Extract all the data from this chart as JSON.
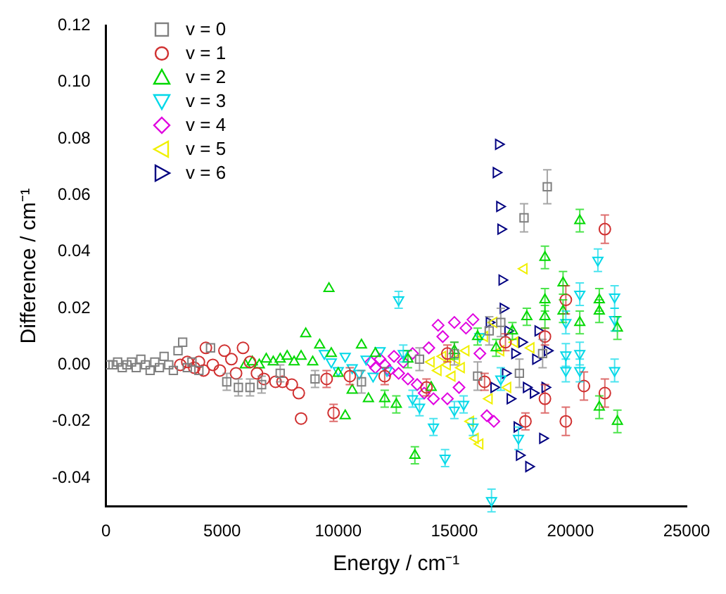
{
  "chart_data": {
    "type": "scatter",
    "xlabel": "Energy / cm⁻¹",
    "ylabel": "Difference / cm⁻¹",
    "xlim": [
      0,
      25000
    ],
    "xticks": [
      0,
      5000,
      10000,
      15000,
      20000,
      25000
    ],
    "ylim": [
      -0.05,
      0.12
    ],
    "yticks": [
      {
        "value": -0.04,
        "label": "-0.04"
      },
      {
        "value": -0.02,
        "label": "-0.02"
      },
      {
        "value": 0,
        "label": "0.00"
      },
      {
        "value": 0.02,
        "label": "0.02"
      },
      {
        "value": 0.04,
        "label": "0.04"
      },
      {
        "value": 0.06,
        "label": "0.06"
      },
      {
        "value": 0.08,
        "label": "0.08"
      },
      {
        "value": 0.1,
        "label": "0.10"
      },
      {
        "value": 0.12,
        "label": "0.12"
      }
    ],
    "grid": false,
    "legend": "top left",
    "series": [
      {
        "name": "v = 0",
        "color": "#808080",
        "marker": "square",
        "x": [
          100,
          300,
          500,
          700,
          900,
          1100,
          1300,
          1500,
          1700,
          1900,
          2100,
          2300,
          2500,
          2700,
          2900,
          3100,
          3300,
          3500,
          3700,
          4000,
          4500,
          5200,
          5700,
          6200,
          6700,
          7500,
          9000,
          11000,
          13500,
          15000,
          16000,
          16500,
          17000,
          17800,
          18000,
          18800,
          19000
        ],
        "values": [
          0,
          0,
          0.001,
          -0.001,
          0,
          0.001,
          -0.001,
          0.002,
          0,
          -0.002,
          0.001,
          -0.001,
          0.003,
          0,
          -0.002,
          0.005,
          0.008,
          -0.001,
          0.001,
          -0.002,
          0.006,
          -0.006,
          -0.008,
          -0.008,
          -0.007,
          -0.003,
          -0.005,
          -0.006,
          0.002,
          0.004,
          -0.004,
          0.012,
          0.015,
          -0.003,
          0.052,
          0.004,
          0.063
        ],
        "errors": [
          null,
          null,
          null,
          null,
          null,
          null,
          null,
          null,
          null,
          null,
          null,
          null,
          null,
          null,
          null,
          null,
          null,
          null,
          null,
          null,
          null,
          0.003,
          0.003,
          0.003,
          0.003,
          0.003,
          0.003,
          0.004,
          0.004,
          0.004,
          0.005,
          0.005,
          0.005,
          0.005,
          0.005,
          0.005,
          0.006
        ]
      },
      {
        "name": "v = 1",
        "color": "#d03030",
        "marker": "circle",
        "x": [
          3200,
          3500,
          3800,
          4000,
          4200,
          4300,
          4600,
          4900,
          5100,
          5400,
          5600,
          5900,
          6200,
          6500,
          6800,
          7300,
          7600,
          8000,
          8300,
          8400,
          9500,
          9800,
          10500,
          12000,
          13800,
          14700,
          16300,
          17200,
          18060,
          18900,
          18900,
          19800,
          19800,
          20580,
          21480,
          21480
        ],
        "values": [
          0,
          0.001,
          -0.001,
          0.001,
          -0.002,
          0.006,
          0,
          -0.002,
          0.005,
          0.002,
          -0.003,
          0.006,
          0.001,
          -0.003,
          -0.005,
          -0.006,
          -0.006,
          -0.007,
          -0.01,
          -0.019,
          -0.005,
          -0.017,
          -0.004,
          -0.004,
          -0.008,
          0.004,
          -0.006,
          0.008,
          -0.02,
          0.01,
          -0.012,
          0.023,
          -0.02,
          -0.0075,
          -0.01,
          0.048
        ],
        "errors": [
          null,
          null,
          null,
          null,
          null,
          null,
          null,
          null,
          null,
          null,
          null,
          null,
          null,
          null,
          null,
          null,
          null,
          null,
          null,
          null,
          0.003,
          0.003,
          0.003,
          0.003,
          0.003,
          0.003,
          0.003,
          0.003,
          0.003,
          0.003,
          0.005,
          0.005,
          0.005,
          0.005,
          0.005,
          0.005
        ]
      },
      {
        "name": "v = 2",
        "color": "#00d800",
        "marker": "triangle",
        "x": [
          6000,
          6300,
          6600,
          6900,
          7200,
          7500,
          7800,
          8100,
          8400,
          8600,
          8900,
          9200,
          9600,
          9700,
          10000,
          10300,
          10600,
          11000,
          11300,
          11600,
          12000,
          12500,
          13000,
          13300,
          14000,
          15000,
          16000,
          16800,
          17500,
          18120,
          18900,
          18900,
          18900,
          19680,
          19680,
          20400,
          20400,
          21240,
          21240,
          21240,
          22020,
          22020
        ],
        "values": [
          0,
          0.001,
          0,
          0.002,
          0.001,
          0.002,
          0.003,
          0.001,
          0.003,
          0.011,
          0.001,
          0.007,
          0.027,
          0.004,
          -0.003,
          -0.018,
          -0.009,
          0.007,
          -0.012,
          0.004,
          -0.012,
          -0.014,
          0.002,
          -0.032,
          -0.008,
          0.005,
          0.01,
          0.006,
          0.012,
          0.017,
          0.038,
          0.023,
          0.017,
          0.029,
          0.019,
          0.051,
          0.015,
          0.023,
          0.019,
          -0.015,
          0.013,
          -0.02
        ],
        "errors": [
          null,
          null,
          null,
          null,
          null,
          null,
          null,
          null,
          null,
          null,
          null,
          null,
          null,
          null,
          null,
          null,
          null,
          null,
          null,
          null,
          0.003,
          0.003,
          0.003,
          0.003,
          null,
          0.003,
          0.003,
          0.003,
          0.003,
          0.003,
          0.004,
          0.004,
          0.004,
          0.004,
          0.004,
          0.004,
          0.004,
          0.004,
          0.004,
          0.004,
          0.004,
          0.004
        ]
      },
      {
        "name": "v = 3",
        "color": "#00d8e8",
        "marker": "triangle-down",
        "x": [
          9400,
          9700,
          10000,
          10300,
          10600,
          10900,
          11200,
          11500,
          11800,
          12100,
          12600,
          12800,
          13200,
          13500,
          14100,
          14600,
          15000,
          15400,
          15800,
          16100,
          16600,
          17000,
          17760,
          19800,
          19800,
          19800,
          20400,
          20400,
          20400,
          21180,
          21900,
          21900,
          21900
        ],
        "values": [
          0.004,
          0.001,
          -0.002,
          0.003,
          -0.001,
          -0.003,
          0.002,
          -0.004,
          0.005,
          -0.002,
          0.023,
          0.004,
          -0.012,
          -0.015,
          -0.022,
          -0.033,
          -0.016,
          -0.014,
          -0.022,
          0.01,
          -0.048,
          -0.005,
          -0.026,
          0.015,
          0.0035,
          -0.002,
          0.025,
          0.004,
          -0.002,
          0.037,
          0.024,
          0.016,
          -0.002
        ],
        "errors": [
          null,
          null,
          null,
          null,
          null,
          null,
          null,
          null,
          null,
          null,
          0.003,
          0.003,
          0.003,
          0.003,
          0.003,
          0.003,
          0.003,
          0.003,
          0.003,
          null,
          0.004,
          0.004,
          0.004,
          0.004,
          0.004,
          0.004,
          0.004,
          0.004,
          0.004,
          0.004,
          0.004,
          0.004,
          0.004
        ]
      },
      {
        "name": "v = 4",
        "color": "#e000e0",
        "marker": "diamond",
        "x": [
          11400,
          11600,
          11800,
          12000,
          12200,
          12400,
          12600,
          12800,
          13000,
          13200,
          13400,
          13700,
          13900,
          14100,
          14300,
          14500,
          14700,
          15000,
          15200,
          15500,
          15800,
          16100,
          16400,
          16700
        ],
        "values": [
          0.001,
          -0.001,
          0.002,
          0,
          -0.002,
          0.003,
          -0.003,
          0.001,
          -0.005,
          0.004,
          -0.007,
          -0.01,
          0.006,
          -0.012,
          0.014,
          0.01,
          -0.012,
          0.015,
          -0.008,
          0.013,
          0.016,
          0.004,
          -0.018,
          -0.02
        ]
      },
      {
        "name": "v = 5",
        "color": "#f0f000",
        "marker": "triangle-left",
        "x": [
          14000,
          14300,
          14500,
          14700,
          14900,
          15100,
          15300,
          15500,
          15700,
          15900,
          16100,
          16300,
          16500,
          16700,
          17000,
          17300,
          17600,
          18000,
          18300
        ],
        "values": [
          0.001,
          -0.002,
          0.003,
          0,
          -0.004,
          0.002,
          -0.001,
          0.005,
          -0.02,
          -0.026,
          -0.028,
          0.01,
          -0.012,
          0.015,
          0.005,
          -0.008,
          0.008,
          0.034,
          0.006
        ]
      },
      {
        "name": "v = 6",
        "color": "#000080",
        "marker": "triangle-right",
        "x": [
          16500,
          16700,
          16800,
          16900,
          16950,
          17000,
          17050,
          17100,
          17200,
          17300,
          17400,
          17600,
          17700,
          17800,
          17900,
          18100,
          18200,
          18400,
          18500,
          18600,
          18800,
          18900,
          19000
        ],
        "values": [
          0.015,
          -0.008,
          0.068,
          0.078,
          0.056,
          0.048,
          0.03,
          0.02,
          -0.003,
          0.012,
          -0.012,
          0.004,
          -0.022,
          -0.032,
          0.008,
          -0.008,
          -0.036,
          -0.01,
          0.002,
          0.012,
          -0.026,
          -0.008,
          0.005
        ]
      }
    ]
  }
}
